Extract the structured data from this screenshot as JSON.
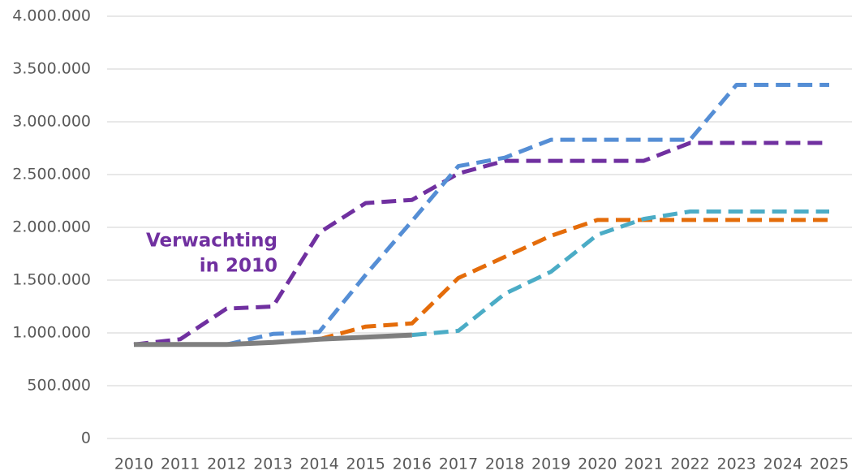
{
  "chart_data": {
    "type": "line",
    "categories": [
      "2010",
      "2011",
      "2012",
      "2013",
      "2014",
      "2015",
      "2016",
      "2017",
      "2018",
      "2019",
      "2020",
      "2021",
      "2022",
      "2023",
      "2024",
      "2025"
    ],
    "series": [
      {
        "color": "#7030a0",
        "dashed": true,
        "values": [
          890000,
          940000,
          1230000,
          1250000,
          1950000,
          2230000,
          2260000,
          2510000,
          2630000,
          2630000,
          2630000,
          2630000,
          2800000,
          2800000,
          2800000,
          2800000
        ]
      },
      {
        "color": "#558ed5",
        "dashed": true,
        "values": [
          null,
          null,
          890000,
          990000,
          1010000,
          1550000,
          2060000,
          2580000,
          2660000,
          2830000,
          2830000,
          2830000,
          2830000,
          3350000,
          3350000,
          3350000
        ]
      },
      {
        "color": "#e46c0a",
        "dashed": true,
        "values": [
          null,
          null,
          null,
          null,
          940000,
          1060000,
          1090000,
          1520000,
          1720000,
          1920000,
          2070000,
          2070000,
          2070000,
          2070000,
          2070000,
          2070000
        ]
      },
      {
        "color": "#4bacc6",
        "dashed": true,
        "values": [
          null,
          null,
          null,
          null,
          null,
          null,
          980000,
          1020000,
          1370000,
          1580000,
          1930000,
          2080000,
          2150000,
          2150000,
          2150000,
          2150000
        ]
      },
      {
        "color": "#7f7f7f",
        "dashed": false,
        "values": [
          890000,
          890000,
          890000,
          910000,
          940000,
          960000,
          980000,
          null,
          null,
          null,
          null,
          null,
          null,
          null,
          null,
          null
        ]
      }
    ],
    "ylim": [
      0,
      4000000
    ],
    "yticks": [
      0,
      {
        "value": 500000,
        "label": "500.000"
      },
      {
        "value": 1000000,
        "label": "1.000.000"
      },
      {
        "value": 1500000,
        "label": "1.500.000"
      },
      {
        "value": 2000000,
        "label": "2.000.000"
      },
      {
        "value": 2500000,
        "label": "2.500.000"
      },
      {
        "value": 3000000,
        "label": "3.000.000"
      },
      {
        "value": 3500000,
        "label": "3.500.000"
      },
      {
        "value": 4000000,
        "label": "4.000.000"
      }
    ],
    "grid": true,
    "annotation": {
      "lines": [
        "Verwachting",
        "in 2010"
      ],
      "color": "#7030a0"
    }
  }
}
